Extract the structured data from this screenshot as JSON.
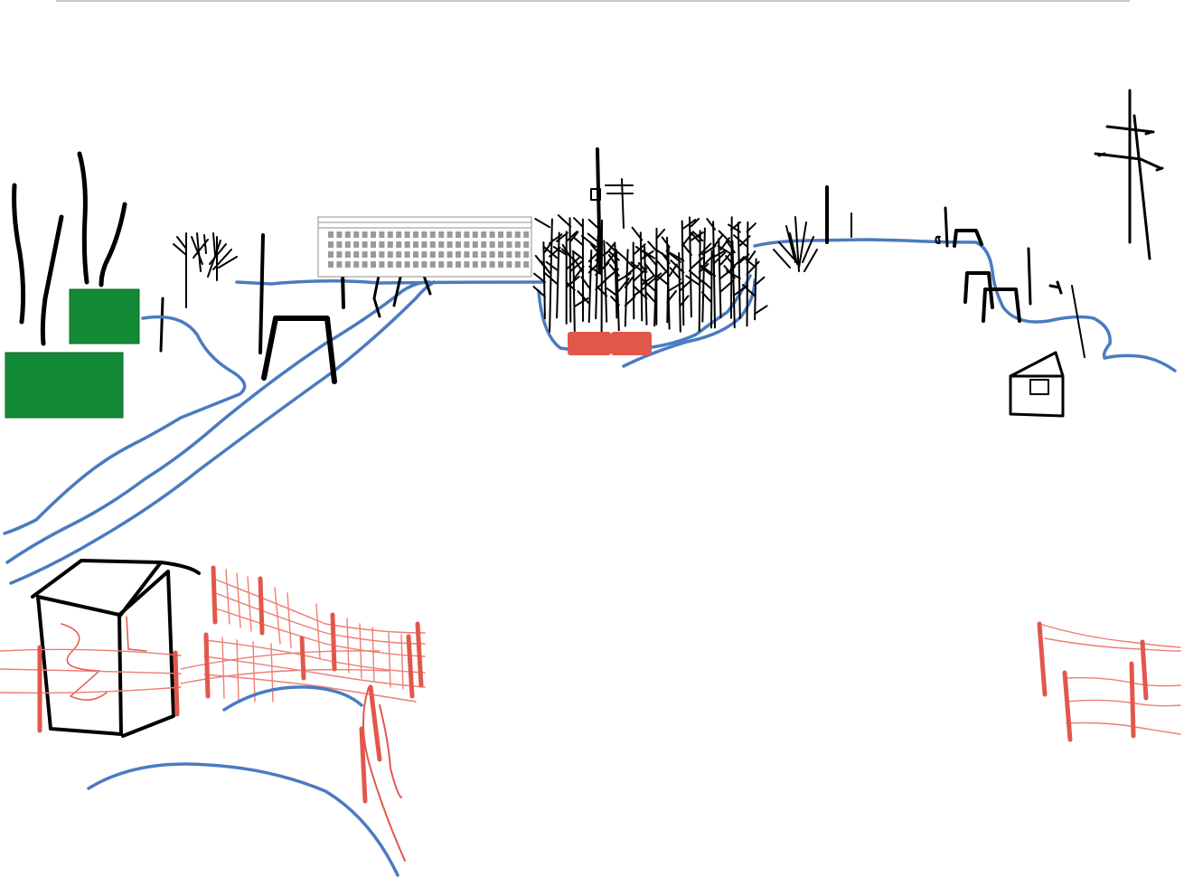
{
  "scene": {
    "kind": "hand-drawn sketch",
    "elements": [
      "poplar-trees",
      "green-shed",
      "green-box",
      "stream",
      "bench-frames",
      "apartment-block",
      "birch-grove",
      "red-blocks",
      "power-pylon",
      "small-hut",
      "outhouse",
      "red-netting-fence",
      "right-fence"
    ]
  },
  "colors": {
    "ink": "#000000",
    "water": "#4a7bc0",
    "fence": "#e2574c",
    "fence_light": "#ec7f75",
    "greenery": "#138a36",
    "building_grey": "#8f8f8f",
    "background": "#ffffff"
  }
}
